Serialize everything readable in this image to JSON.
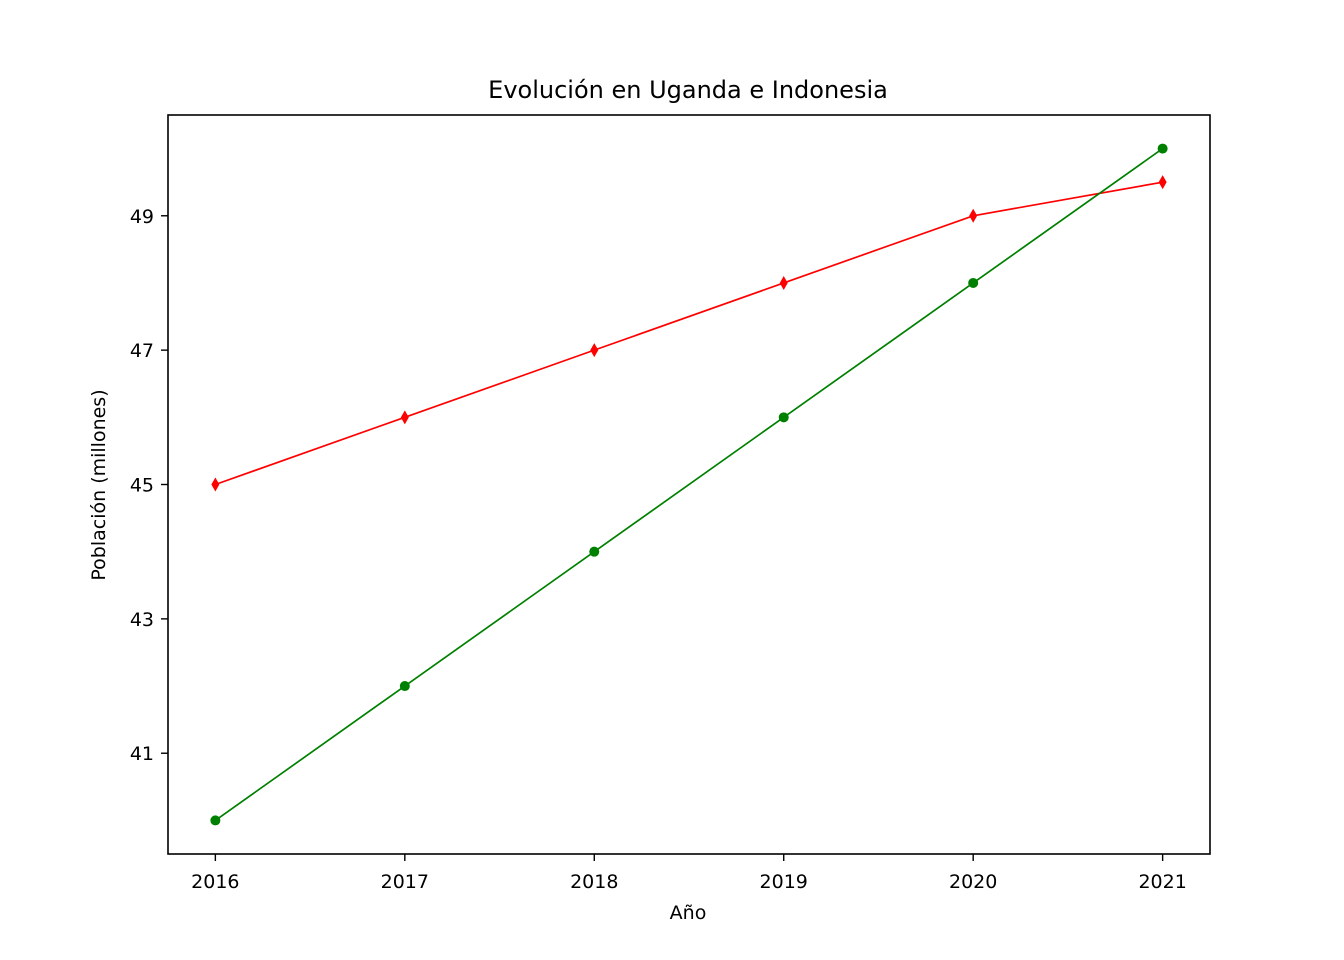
{
  "chart_data": {
    "type": "line",
    "title": "Evolución en Uganda e Indonesia",
    "xlabel": "Año",
    "ylabel": "Población (millones)",
    "x": [
      2016,
      2017,
      2018,
      2019,
      2020,
      2021
    ],
    "x_ticks": [
      "2016",
      "2017",
      "2018",
      "2019",
      "2020",
      "2021"
    ],
    "y_ticks": [
      "41",
      "43",
      "45",
      "47",
      "49"
    ],
    "xlim": [
      2015.75,
      2021.25
    ],
    "ylim": [
      39.5,
      50.5
    ],
    "grid": false,
    "series": [
      {
        "values": [
          45,
          46,
          47,
          48,
          49,
          49.5
        ],
        "color": "#ff0000",
        "marker": "thin-diamond"
      },
      {
        "values": [
          40,
          42,
          44,
          46,
          48,
          50
        ],
        "color": "#008000",
        "marker": "circle"
      }
    ]
  }
}
